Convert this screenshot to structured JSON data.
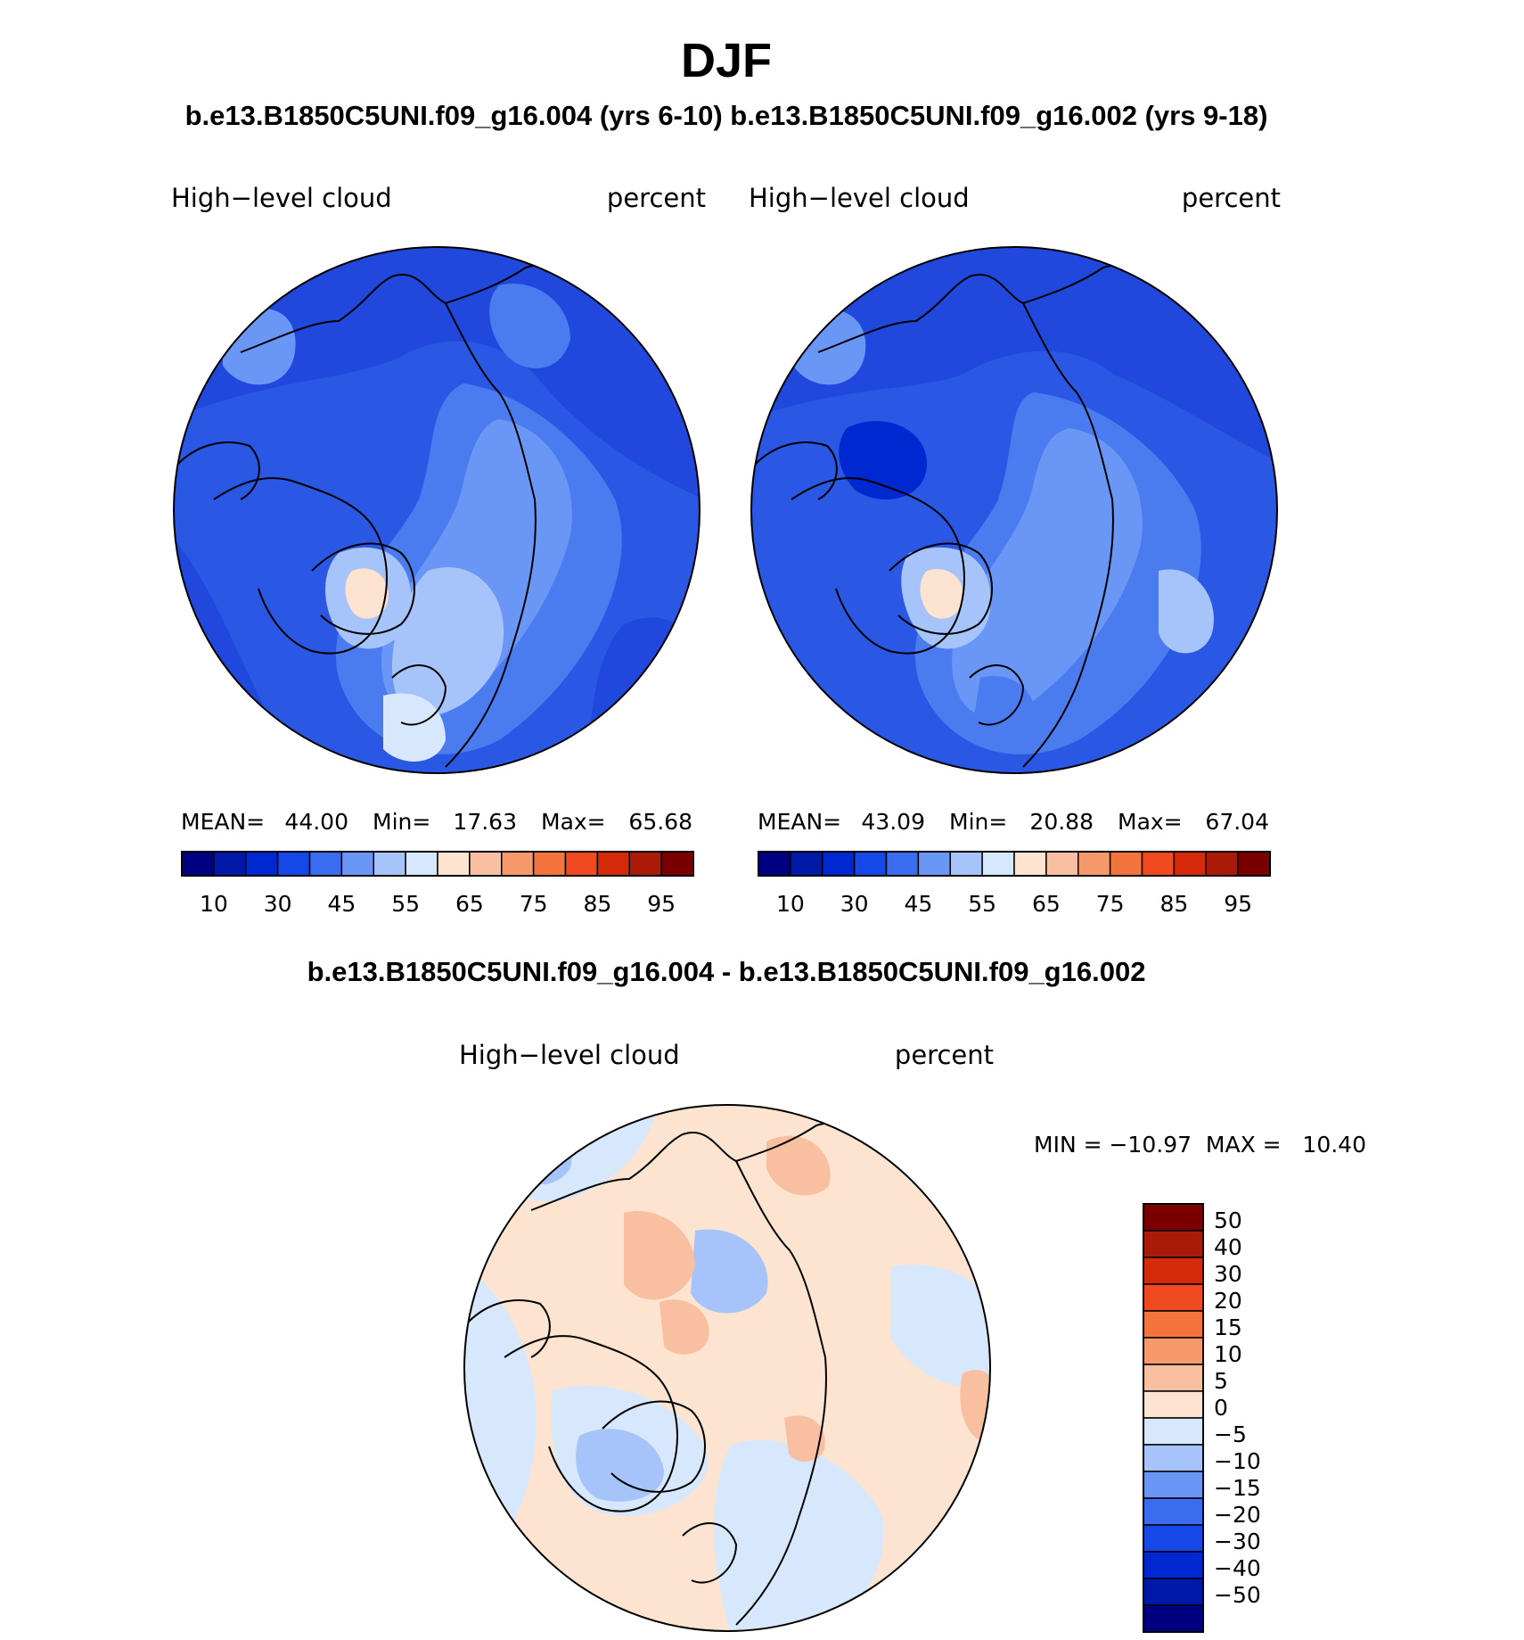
{
  "title": "DJF",
  "case_top": "b.e13.B1850C5UNI.f09_g16.004 (yrs 6-10) b.e13.B1850C5UNI.f09_g16.002 (yrs 9-18)",
  "case_diff": "b.e13.B1850C5UNI.f09_g16.004 - b.e13.B1850C5UNI.f09_g16.002",
  "panels": [
    {
      "variable": "High−level cloud",
      "units": "percent",
      "mean_label": "MEAN=",
      "mean": "44.00",
      "min_label": "Min=",
      "min": "17.63",
      "max_label": "Max=",
      "max": "65.68"
    },
    {
      "variable": "High−level cloud",
      "units": "percent",
      "mean_label": "MEAN=",
      "mean": "43.09",
      "min_label": "Min=",
      "min": "20.88",
      "max_label": "Max=",
      "max": "67.04"
    }
  ],
  "diff_panel": {
    "variable": "High−level cloud",
    "units": "percent",
    "minmax_text": "MIN = −10.97  MAX =   10.40"
  },
  "main_colorbar": {
    "colors": [
      "#000080",
      "#0018a8",
      "#0028d0",
      "#1648e8",
      "#3a6cf0",
      "#6a96f6",
      "#a6c4fa",
      "#d8e8fc",
      "#fce4d0",
      "#f8c0a0",
      "#f69a6c",
      "#f4743e",
      "#ef4a20",
      "#d42a0a",
      "#aa1a08",
      "#7a0000"
    ],
    "tick_labels": [
      "10",
      "30",
      "45",
      "55",
      "65",
      "75",
      "85",
      "95"
    ]
  },
  "diff_colorbar": {
    "colors": [
      "#000080",
      "#0018a8",
      "#0028d0",
      "#1648e8",
      "#3a6cf0",
      "#6a96f6",
      "#a6c4fa",
      "#d8e8fc",
      "#fce4d0",
      "#f8c0a0",
      "#f69a6c",
      "#f4743e",
      "#ef4a20",
      "#d42a0a",
      "#aa1a08",
      "#7a0000"
    ],
    "tick_labels": [
      "50",
      "40",
      "30",
      "20",
      "15",
      "10",
      "5",
      "0",
      "−5",
      "−10",
      "−15",
      "−20",
      "−30",
      "−40",
      "−50"
    ]
  }
}
